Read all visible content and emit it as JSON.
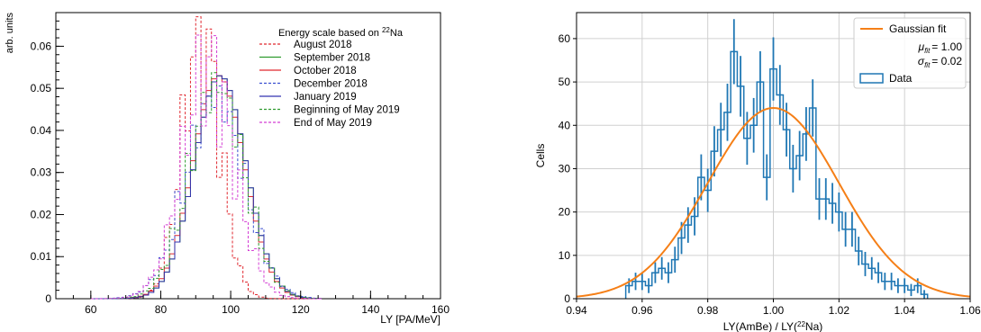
{
  "chart_data": [
    {
      "type": "step-histogram",
      "ylabel": "arb. units",
      "xlabel": "LY [PA/MeV]",
      "xlim": [
        50,
        160
      ],
      "ylim": [
        0,
        0.068
      ],
      "x_ticks": [
        "60",
        "80",
        "100",
        "120",
        "140",
        "160"
      ],
      "y_ticks": [
        "0",
        "0.01",
        "0.02",
        "0.03",
        "0.04",
        "0.05",
        "0.06"
      ],
      "legend": {
        "title_prefix": "Energy scale based on ",
        "title_sup": "22",
        "title_suffix": "Na",
        "placement": "top-right"
      },
      "series": [
        {
          "name": "August 2018",
          "color": "#e0272f",
          "dash": true,
          "mean": 91.5,
          "sigma": 5.4,
          "peak": 0.066,
          "spiky": true
        },
        {
          "name": "September 2018",
          "color": "#2e9b2e",
          "dash": false,
          "mean": 97.0,
          "sigma": 7.4,
          "peak": 0.053,
          "spiky": false
        },
        {
          "name": "October 2018",
          "color": "#e0272f",
          "dash": false,
          "mean": 96.5,
          "sigma": 7.4,
          "peak": 0.053,
          "spiky": false
        },
        {
          "name": "December 2018",
          "color": "#3a4fd0",
          "dash": true,
          "mean": 95.5,
          "sigma": 8.3,
          "peak": 0.051,
          "spiky": true
        },
        {
          "name": "January 2019",
          "color": "#3333b0",
          "dash": false,
          "mean": 97.0,
          "sigma": 7.4,
          "peak": 0.053,
          "spiky": false
        },
        {
          "name": "Beginning of May 2019",
          "color": "#2e9b2e",
          "dash": true,
          "mean": 96.0,
          "sigma": 7.8,
          "peak": 0.054,
          "spiky": true
        },
        {
          "name": "End of May 2019",
          "color": "#d43fd4",
          "dash": true,
          "mean": 93.5,
          "sigma": 7.4,
          "peak": 0.057,
          "spiky": true
        }
      ]
    },
    {
      "type": "histogram-with-fit",
      "ylabel": "Cells",
      "xlabel": "LY(AmBe) / LY(²²Na)",
      "xlim": [
        0.94,
        1.06
      ],
      "ylim": [
        0,
        66
      ],
      "x_ticks": [
        "0.94",
        "0.96",
        "0.98",
        "1.00",
        "1.02",
        "1.04",
        "1.06"
      ],
      "y_ticks": [
        "0",
        "10",
        "20",
        "30",
        "40",
        "50",
        "60"
      ],
      "grid": true,
      "legend_placement": "top-right",
      "fit": {
        "name": "Gaussian fit",
        "color": "#f57f17",
        "amplitude": 44,
        "mu_label": "μ",
        "mu_sub": "fit",
        "mu_value": "= 1.00",
        "sigma_label": "σ",
        "sigma_sub": "fit",
        "sigma_value": "= 0.02",
        "mu": 1.0,
        "sigma": 0.02
      },
      "data_series": {
        "name": "Data",
        "color": "#1f77b4",
        "bin_width": 0.002,
        "x_start": 0.955,
        "values": [
          3,
          4,
          4,
          3,
          6,
          7,
          6,
          9,
          14,
          17,
          19,
          28,
          25,
          34,
          39,
          43,
          57,
          49,
          37,
          40,
          50,
          28,
          53,
          47,
          39,
          30,
          33,
          38,
          44,
          23,
          23,
          22,
          20,
          16,
          16,
          11,
          8,
          7,
          6,
          4,
          4,
          3,
          3,
          2,
          3,
          1
        ],
        "errors": [
          1.7,
          2,
          2,
          1.7,
          2.4,
          2.6,
          2.4,
          3,
          3.7,
          4.1,
          4.4,
          5.3,
          5,
          5.8,
          6.2,
          6.6,
          7.5,
          7,
          6.1,
          6.3,
          7.1,
          5.3,
          7.3,
          6.9,
          6.2,
          5.5,
          5.7,
          6.2,
          6.6,
          4.8,
          4.8,
          4.7,
          4.5,
          4,
          4,
          3.3,
          2.8,
          2.6,
          2.4,
          2,
          2,
          1.7,
          1.7,
          1.4,
          1.7,
          1
        ]
      }
    }
  ]
}
